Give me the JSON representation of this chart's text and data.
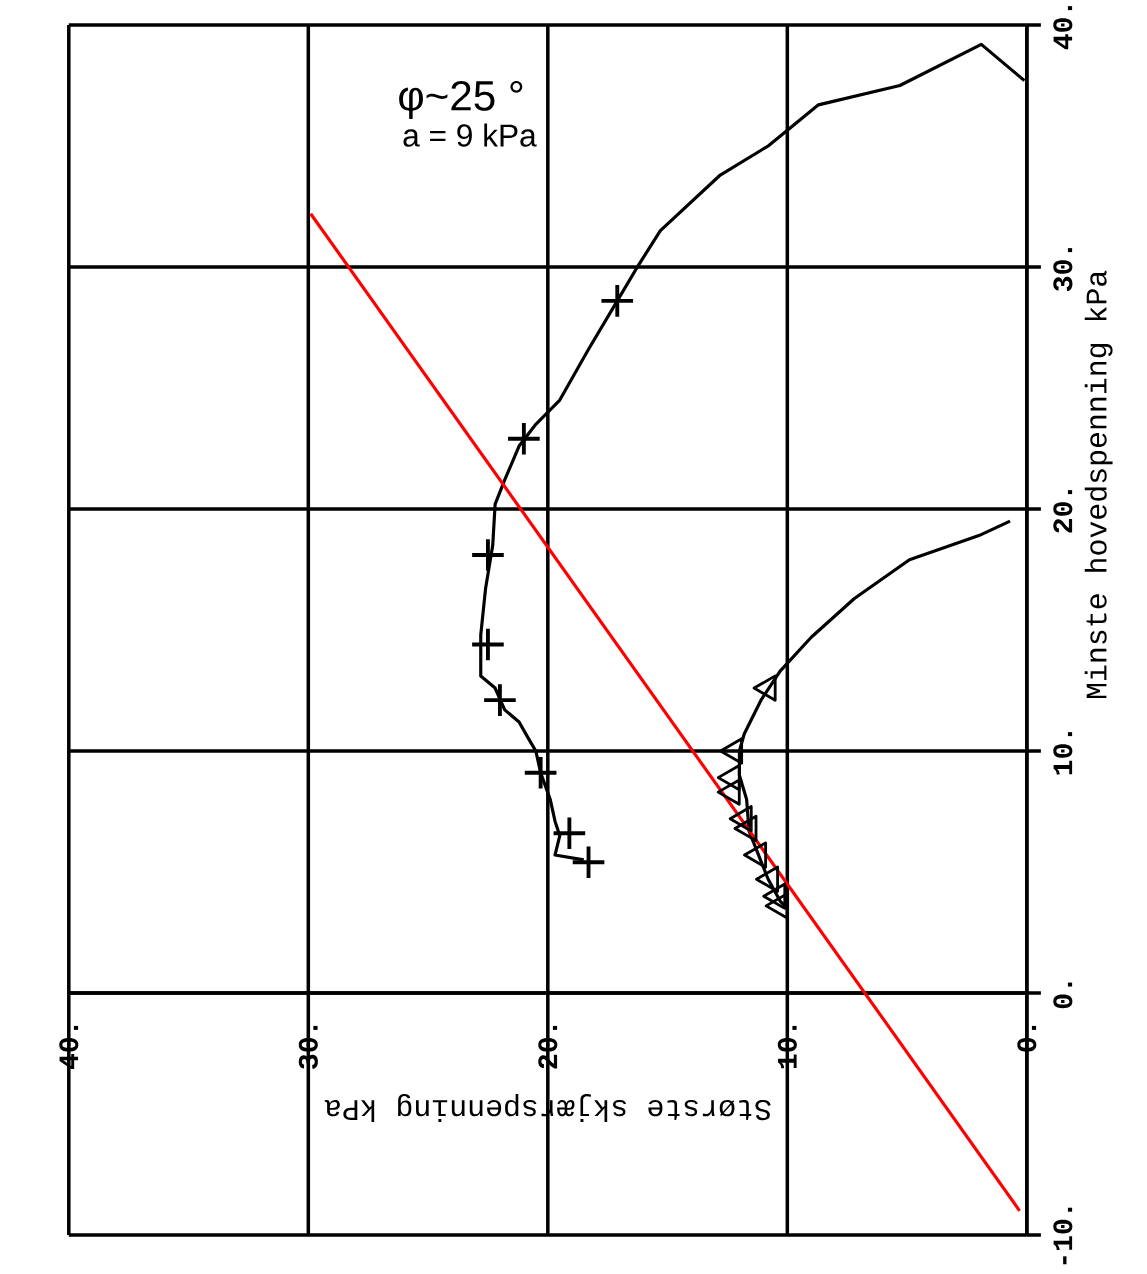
{
  "chart_data": {
    "type": "line",
    "xlabel": "Største skjærspenning kPa",
    "ylabel": "Minste hovedspenning kPa",
    "annotations": [
      "φ~25 °",
      "a = 9 kPa"
    ],
    "xlim": [
      40,
      0
    ],
    "ylim": [
      -10,
      40
    ],
    "xticks": [
      {
        "value": 40,
        "label": "40."
      },
      {
        "value": 30,
        "label": "30."
      },
      {
        "value": 20,
        "label": "20."
      },
      {
        "value": 10,
        "label": "10."
      },
      {
        "value": 0,
        "label": "0."
      }
    ],
    "yticks": [
      {
        "value": -10,
        "label": "-10."
      },
      {
        "value": 0,
        "label": "0."
      },
      {
        "value": 10,
        "label": "10."
      },
      {
        "value": 20,
        "label": "20."
      },
      {
        "value": 30,
        "label": "30."
      },
      {
        "value": 40,
        "label": "40."
      }
    ],
    "grid": true,
    "series": [
      {
        "color": "#000000",
        "marker": "none",
        "x": [
          0.1,
          1.9,
          5.3,
          8.7,
          10.8,
          12.8,
          15.3,
          16.2,
          17.1,
          18.3,
          19.5,
          20.5,
          21.2,
          21.8,
          22.2,
          22.3,
          22.6,
          22.8,
          22.8,
          22.2,
          21.8,
          21.2,
          20.8,
          20.5,
          20.3,
          19.9,
          19.7,
          19.5,
          19.7,
          18.5
        ],
        "values": [
          37.7,
          39.2,
          37.5,
          36.7,
          35.0,
          33.8,
          31.5,
          30.1,
          28.6,
          26.6,
          24.5,
          23.5,
          22.6,
          21.2,
          20.2,
          18.5,
          16.7,
          14.8,
          13.1,
          12.6,
          11.7,
          11.2,
          10.5,
          10.0,
          9.1,
          8.0,
          7.1,
          6.5,
          5.7,
          5.5
        ]
      },
      {
        "type": "scatter",
        "color": "#000000",
        "marker": "cross",
        "x": [
          17.1,
          21.0,
          22.5,
          22.5,
          22.0,
          20.3,
          19.1,
          18.3
        ],
        "values": [
          28.6,
          22.9,
          18.1,
          14.4,
          12.1,
          9.1,
          6.6,
          5.4
        ]
      },
      {
        "color": "#000000",
        "marker": "none",
        "x": [
          0.7,
          2.0,
          4.9,
          7.2,
          9.0,
          10.3,
          11.1,
          11.8,
          12.0,
          12.0,
          11.7,
          11.6,
          11.2,
          10.8,
          10.3,
          10.0
        ],
        "values": [
          19.5,
          18.9,
          17.9,
          16.3,
          14.7,
          13.3,
          12.1,
          10.7,
          10.0,
          9.0,
          8.0,
          6.7,
          5.7,
          4.7,
          3.8,
          3.5
        ]
      },
      {
        "type": "scatter",
        "color": "#000000",
        "marker": "triangle",
        "x": [
          10.8,
          12.2,
          12.3,
          12.3,
          11.8,
          11.6,
          11.2,
          10.7,
          10.4,
          10.3
        ],
        "values": [
          12.6,
          10.0,
          8.9,
          8.3,
          7.2,
          6.8,
          5.7,
          4.7,
          4.0,
          3.6
        ]
      },
      {
        "color": "#ff0000",
        "marker": "none",
        "x": [
          29.9,
          0.3
        ],
        "values": [
          32.2,
          -9.0
        ]
      }
    ]
  }
}
